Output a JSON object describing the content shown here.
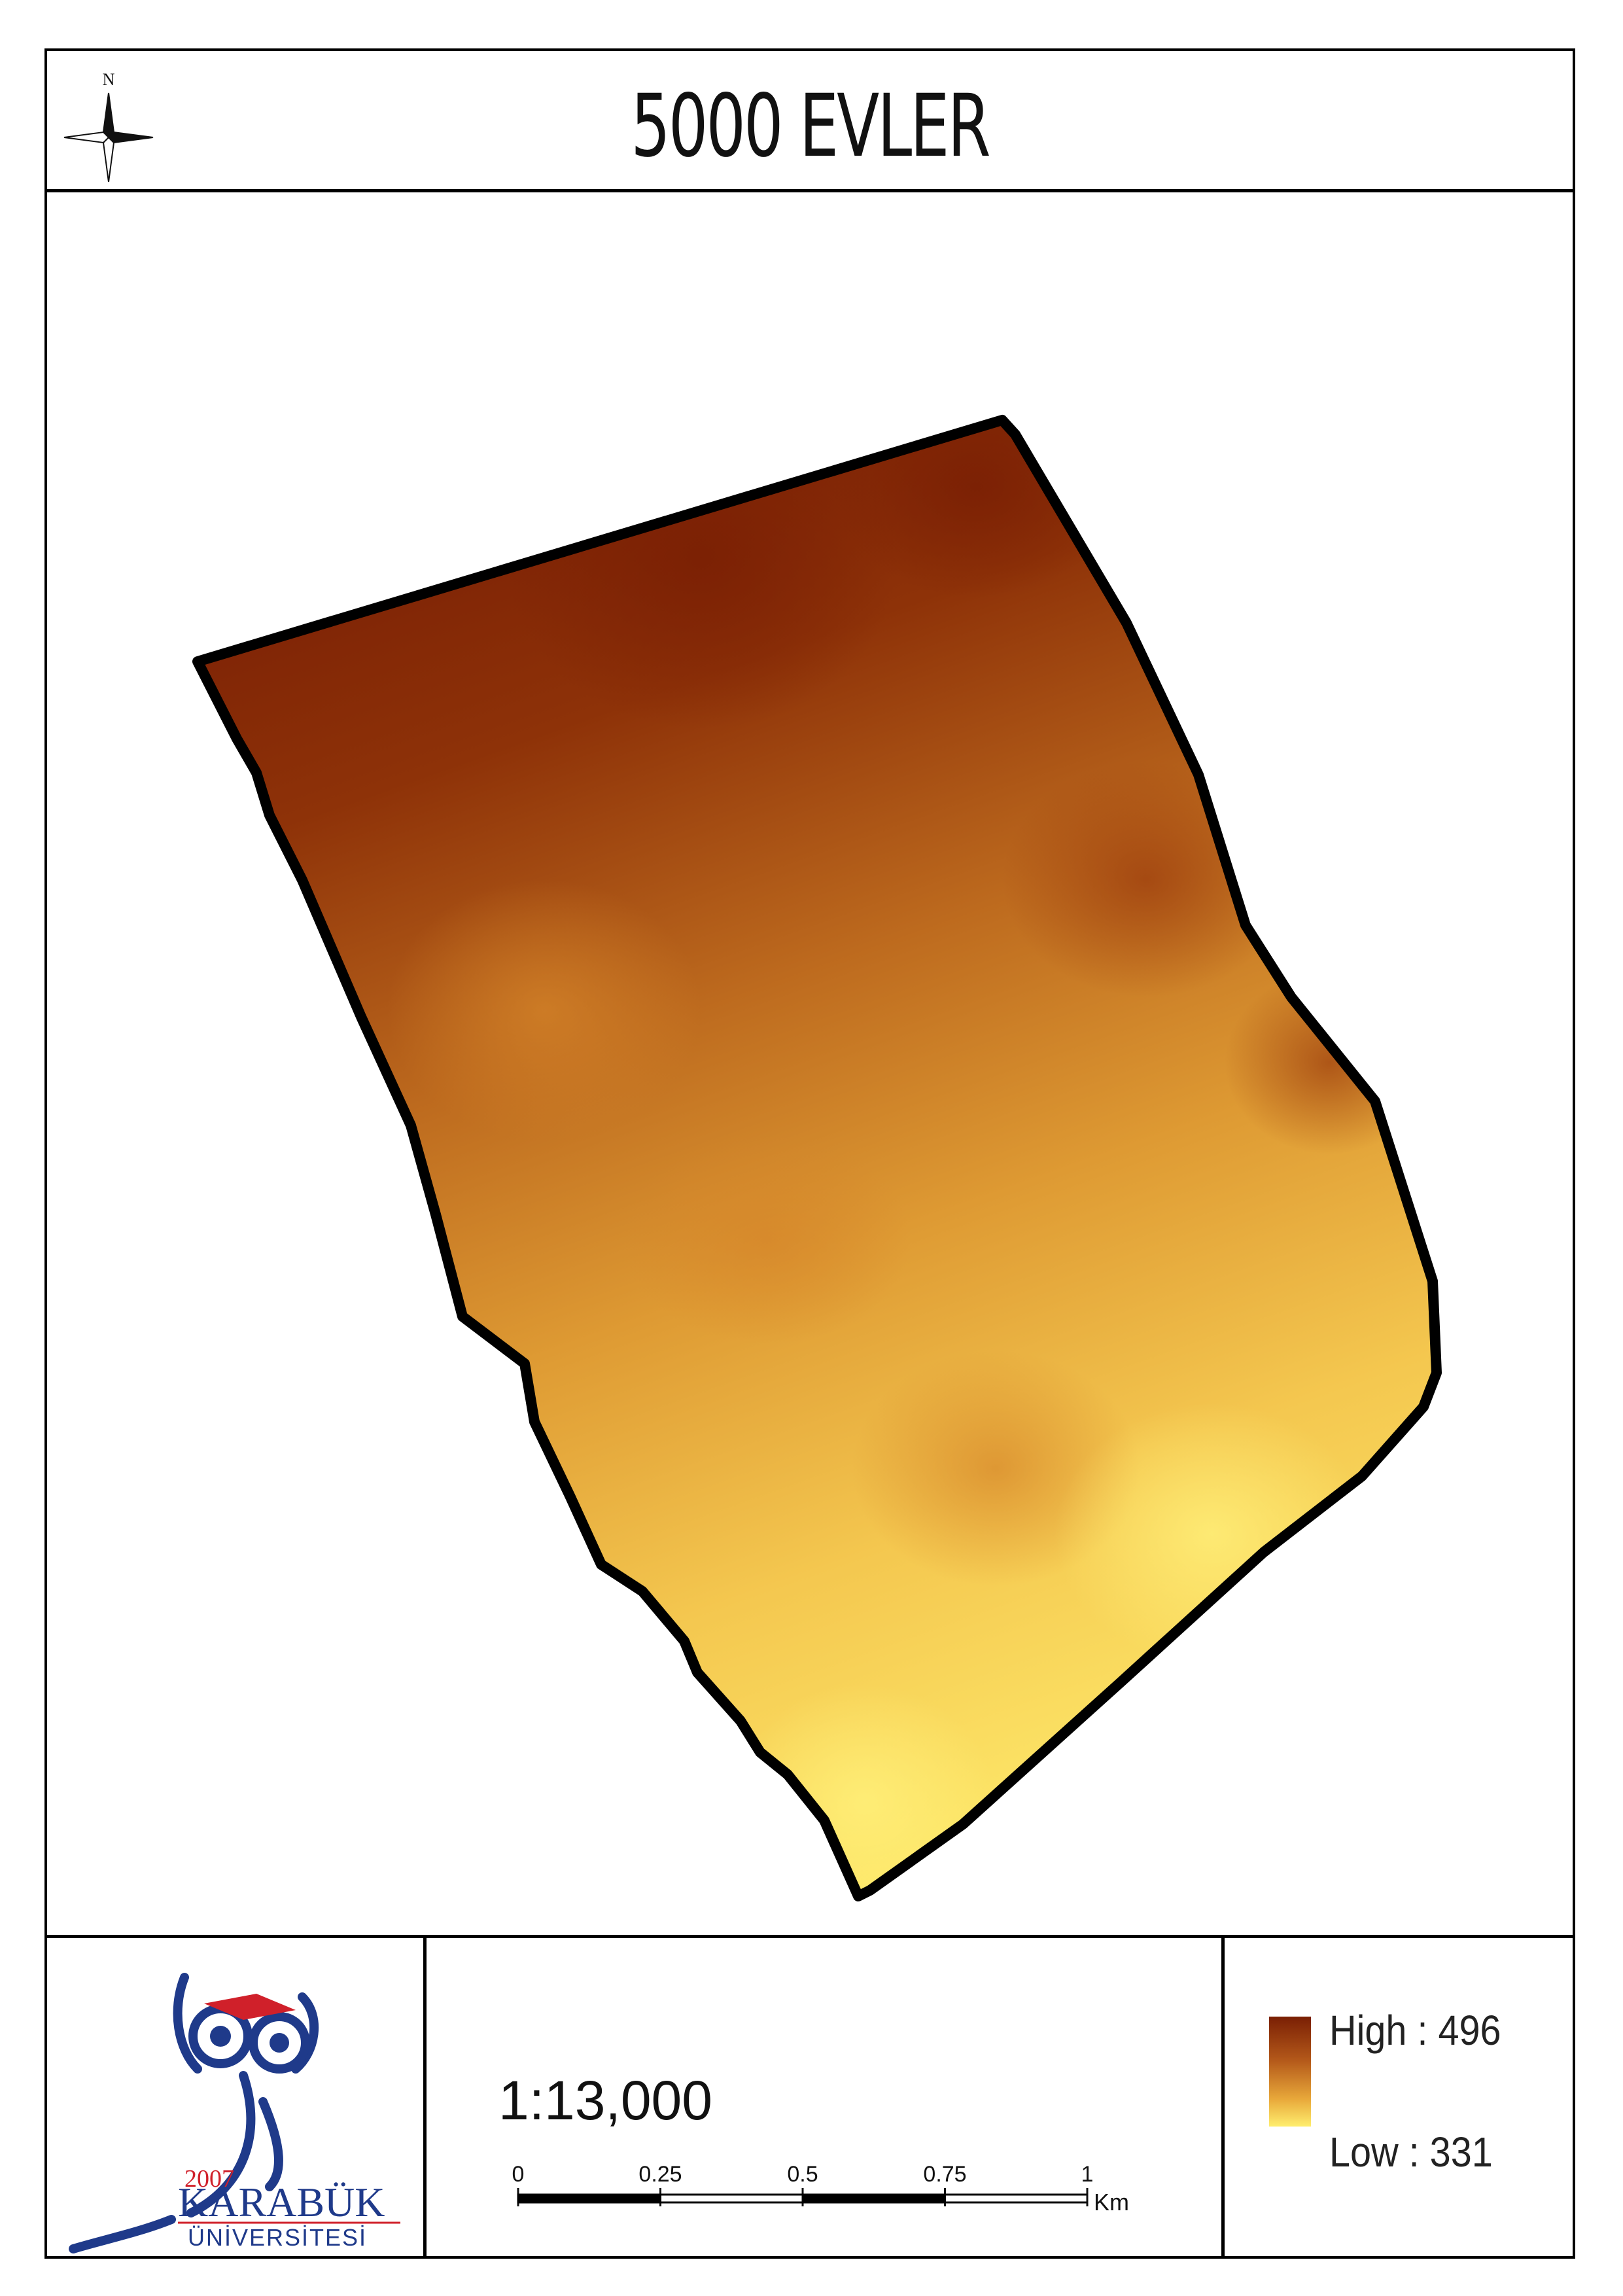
{
  "title": "5000 EVLER",
  "north_arrow": {
    "label": "N",
    "icon": "compass-rose-icon"
  },
  "map": {
    "raster": "elevation-surface",
    "boundary_color": "#000000",
    "colors": {
      "high": "#7a1f04",
      "mid": "#d88a2c",
      "low": "#ffee6e"
    }
  },
  "logo": {
    "year": "2007",
    "name": "KARABÜK",
    "subname": "ÜNİVERSİTESİ"
  },
  "scale": {
    "ratio": "1:13,000",
    "ticks": [
      "0",
      "0.25",
      "0.5",
      "0.75",
      "1"
    ],
    "unit": "Km"
  },
  "legend": {
    "high_label": "High : 496",
    "low_label": "Low : 331"
  }
}
